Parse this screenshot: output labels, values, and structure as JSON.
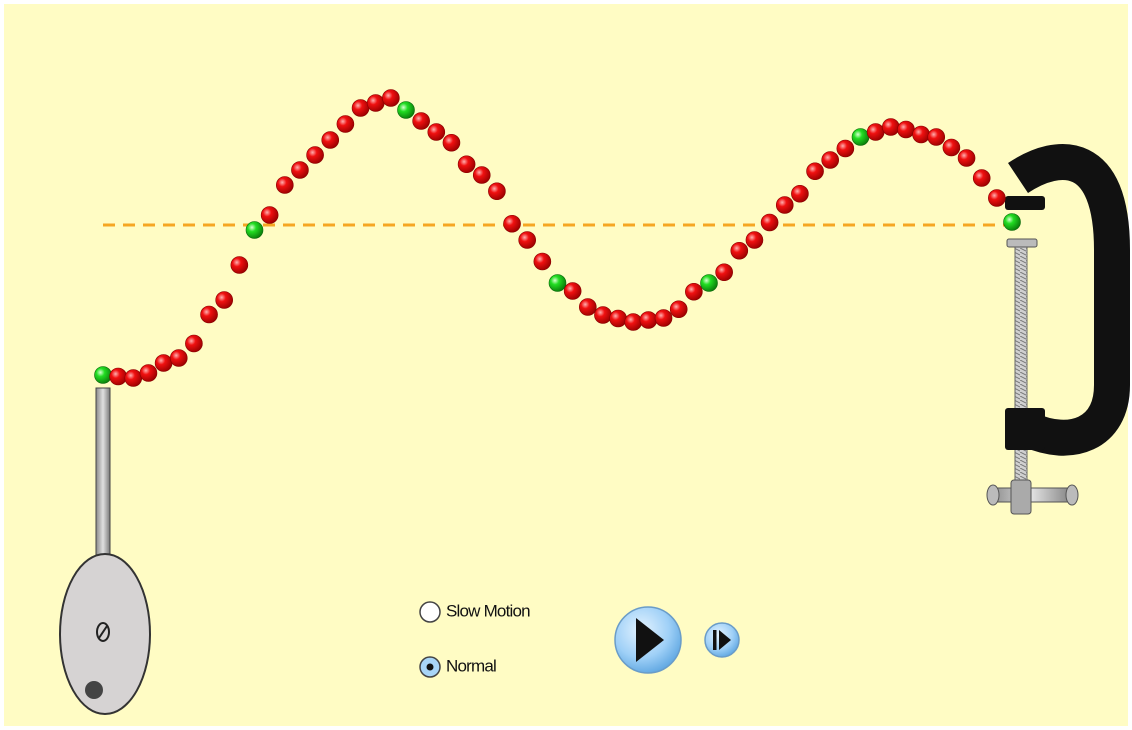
{
  "controls": {
    "speed": [
      {
        "label": "Slow Motion"
      },
      {
        "label": "Normal"
      }
    ]
  }
}
